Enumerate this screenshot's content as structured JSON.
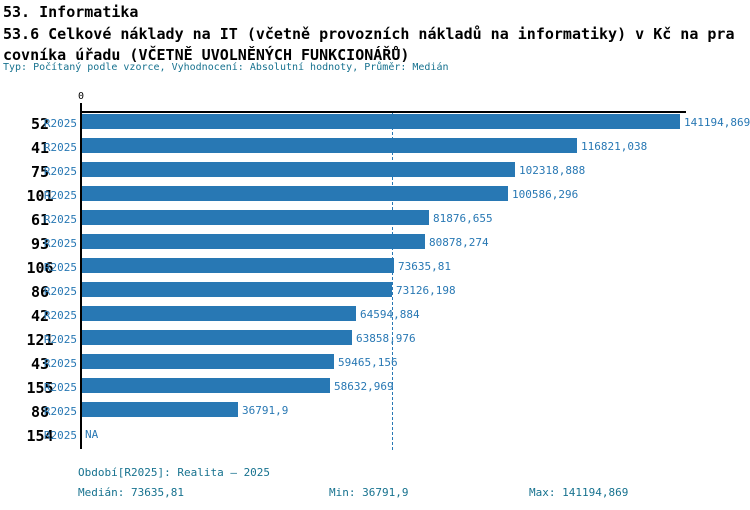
{
  "header": {
    "line1": "53. Informatika",
    "line2": "53.6 Celkové náklady na IT (včetně provozních nákladů na informatiky) v Kč na pra",
    "line3": "covníka úřadu (VČETNĚ UVOLNĚNÝCH FUNKCIONÁŘŮ)",
    "subtitle": "Typ: Počítaný podle vzorce, Vyhodnocení: Absolutní hodnoty, Průměr: Medián"
  },
  "chart_data": {
    "type": "bar",
    "orientation": "horizontal",
    "title": "53.6 Celkové náklady na IT (včetně provozních nákladů na informatiky) v Kč na pracovníka úřadu (VČETNĚ UVOLNĚNÝCH FUNKCIONÁŘŮ)",
    "zero_tick_label": "0",
    "xlim": [
      0,
      141194.869
    ],
    "median_value": 73635.81,
    "series_period": "R2025",
    "categories": [
      "52",
      "41",
      "75",
      "101",
      "61",
      "93",
      "106",
      "86",
      "42",
      "121",
      "43",
      "155",
      "88",
      "154"
    ],
    "values": [
      141194.869,
      116821.038,
      102318.888,
      100586.296,
      81876.655,
      80878.274,
      73635.81,
      73126.198,
      64594.884,
      63858.976,
      59465.156,
      58632.969,
      36791.9,
      null
    ],
    "value_labels": [
      "141194,869",
      "116821,038",
      "102318,888",
      "100586,296",
      "81876,655",
      "80878,274",
      "73635,81",
      "73126,198",
      "64594,884",
      "63858,976",
      "59465,156",
      "58632,969",
      "36791,9",
      "NA"
    ],
    "legend_position": "none",
    "grid": false,
    "colors": {
      "bar": "#2878b4",
      "axis": "#000000",
      "median_line": "#2878b4",
      "label_text": "#2878b4",
      "meta_text": "#17728f"
    }
  },
  "footer": {
    "period": "Období[R2025]: Realita – 2025",
    "median": "Medián: 73635,81",
    "min": "Min: 36791,9",
    "max": "Max: 141194,869"
  }
}
